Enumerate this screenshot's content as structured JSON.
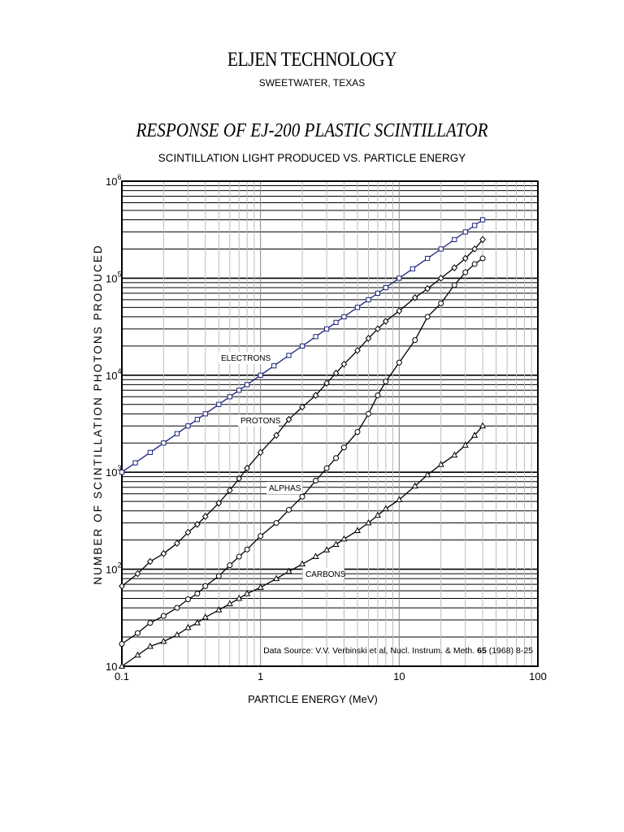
{
  "header": {
    "company": "ELJEN TECHNOLOGY",
    "location": "SWEETWATER, TEXAS"
  },
  "chart_data": {
    "type": "line",
    "title": "RESPONSE OF EJ-200 PLASTIC SCINTILLATOR",
    "subtitle": "SCINTILLATION LIGHT PRODUCED VS. PARTICLE ENERGY",
    "xlabel": "PARTICLE ENERGY  (MeV)",
    "ylabel": "NUMBER OF SCINTILLATION PHOTONS PRODUCED",
    "xscale": "log",
    "yscale": "log",
    "xlim": [
      0.1,
      100
    ],
    "ylim": [
      10,
      1000000
    ],
    "grid": true,
    "x_tick_labels": [
      "0.1",
      "1",
      "10",
      "100"
    ],
    "y_tick_labels": [
      {
        "base": "10",
        "exp": ""
      },
      {
        "base": "10",
        "exp": "2"
      },
      {
        "base": "10",
        "exp": "3"
      },
      {
        "base": "10",
        "exp": "4"
      },
      {
        "base": "10",
        "exp": "5"
      },
      {
        "base": "10",
        "exp": "6"
      }
    ],
    "annotation": {
      "prefix": "Data Source:  V.V. Verbinski et al, Nucl. Instrum. & Meth. ",
      "bold": "65",
      "suffix": "  (1968) 8-25"
    },
    "series": [
      {
        "name": "ELECTRONS",
        "marker": "square",
        "color": "#1a237e",
        "x": [
          0.1,
          0.125,
          0.16,
          0.2,
          0.25,
          0.3,
          0.35,
          0.4,
          0.5,
          0.6,
          0.7,
          0.8,
          1.0,
          1.25,
          1.6,
          2.0,
          2.5,
          3.0,
          3.5,
          4.0,
          5.0,
          6.0,
          7.0,
          8.0,
          10,
          12.5,
          16,
          20,
          25,
          30,
          35,
          40
        ],
        "y": [
          1000,
          1250,
          1600,
          2000,
          2500,
          3000,
          3500,
          4000,
          5000,
          6000,
          7000,
          8000,
          10000,
          12500,
          16000,
          20000,
          25000,
          30000,
          35000,
          40000,
          50000,
          60000,
          70000,
          80000,
          100000,
          125000,
          160000,
          200000,
          250000,
          300000,
          350000,
          400000
        ]
      },
      {
        "name": "PROTONS",
        "marker": "diamond",
        "color": "#000000",
        "x": [
          0.1,
          0.13,
          0.16,
          0.2,
          0.25,
          0.3,
          0.35,
          0.4,
          0.5,
          0.6,
          0.7,
          0.8,
          1.0,
          1.3,
          1.6,
          2.0,
          2.5,
          3.0,
          3.5,
          4.0,
          5.0,
          6.0,
          7.0,
          8.0,
          10,
          13,
          16,
          20,
          25,
          30,
          35,
          40
        ],
        "y": [
          67,
          90,
          120,
          145,
          185,
          240,
          290,
          350,
          480,
          650,
          860,
          1100,
          1600,
          2400,
          3500,
          4700,
          6200,
          8300,
          10500,
          13000,
          18000,
          24000,
          30000,
          36000,
          46000,
          63000,
          78000,
          100000,
          128000,
          160000,
          200000,
          250000
        ]
      },
      {
        "name": "ALPHAS",
        "marker": "circle",
        "color": "#000000",
        "x": [
          0.1,
          0.13,
          0.16,
          0.2,
          0.25,
          0.3,
          0.35,
          0.4,
          0.5,
          0.6,
          0.7,
          0.8,
          1.0,
          1.3,
          1.6,
          2.0,
          2.5,
          3.0,
          3.5,
          4.0,
          5.0,
          6.0,
          7.0,
          8.0,
          10,
          13,
          16,
          20,
          25,
          30,
          35,
          40
        ],
        "y": [
          17,
          22,
          28,
          33,
          40,
          49,
          56,
          67,
          85,
          110,
          135,
          160,
          220,
          300,
          410,
          560,
          820,
          1100,
          1400,
          1800,
          2600,
          4000,
          6200,
          8600,
          13500,
          23000,
          40000,
          55000,
          85000,
          115000,
          140000,
          160000
        ]
      },
      {
        "name": "CARBONS",
        "marker": "triangle",
        "color": "#000000",
        "x": [
          0.1,
          0.13,
          0.16,
          0.2,
          0.25,
          0.3,
          0.35,
          0.4,
          0.5,
          0.6,
          0.7,
          0.8,
          1.0,
          1.3,
          1.6,
          2.0,
          2.5,
          3.0,
          3.5,
          4.0,
          5.0,
          6.0,
          7.0,
          8.0,
          10,
          13,
          16,
          20,
          25,
          30,
          35,
          40
        ],
        "y": [
          10,
          13,
          16,
          18,
          21,
          25,
          28,
          32,
          38,
          44,
          50,
          56,
          65,
          80,
          95,
          113,
          135,
          158,
          180,
          205,
          250,
          300,
          360,
          420,
          520,
          720,
          940,
          1200,
          1500,
          1900,
          2400,
          3000
        ]
      }
    ],
    "series_labels": [
      "ELECTRONS",
      "PROTONS",
      "ALPHAS",
      "CARBONS"
    ]
  }
}
